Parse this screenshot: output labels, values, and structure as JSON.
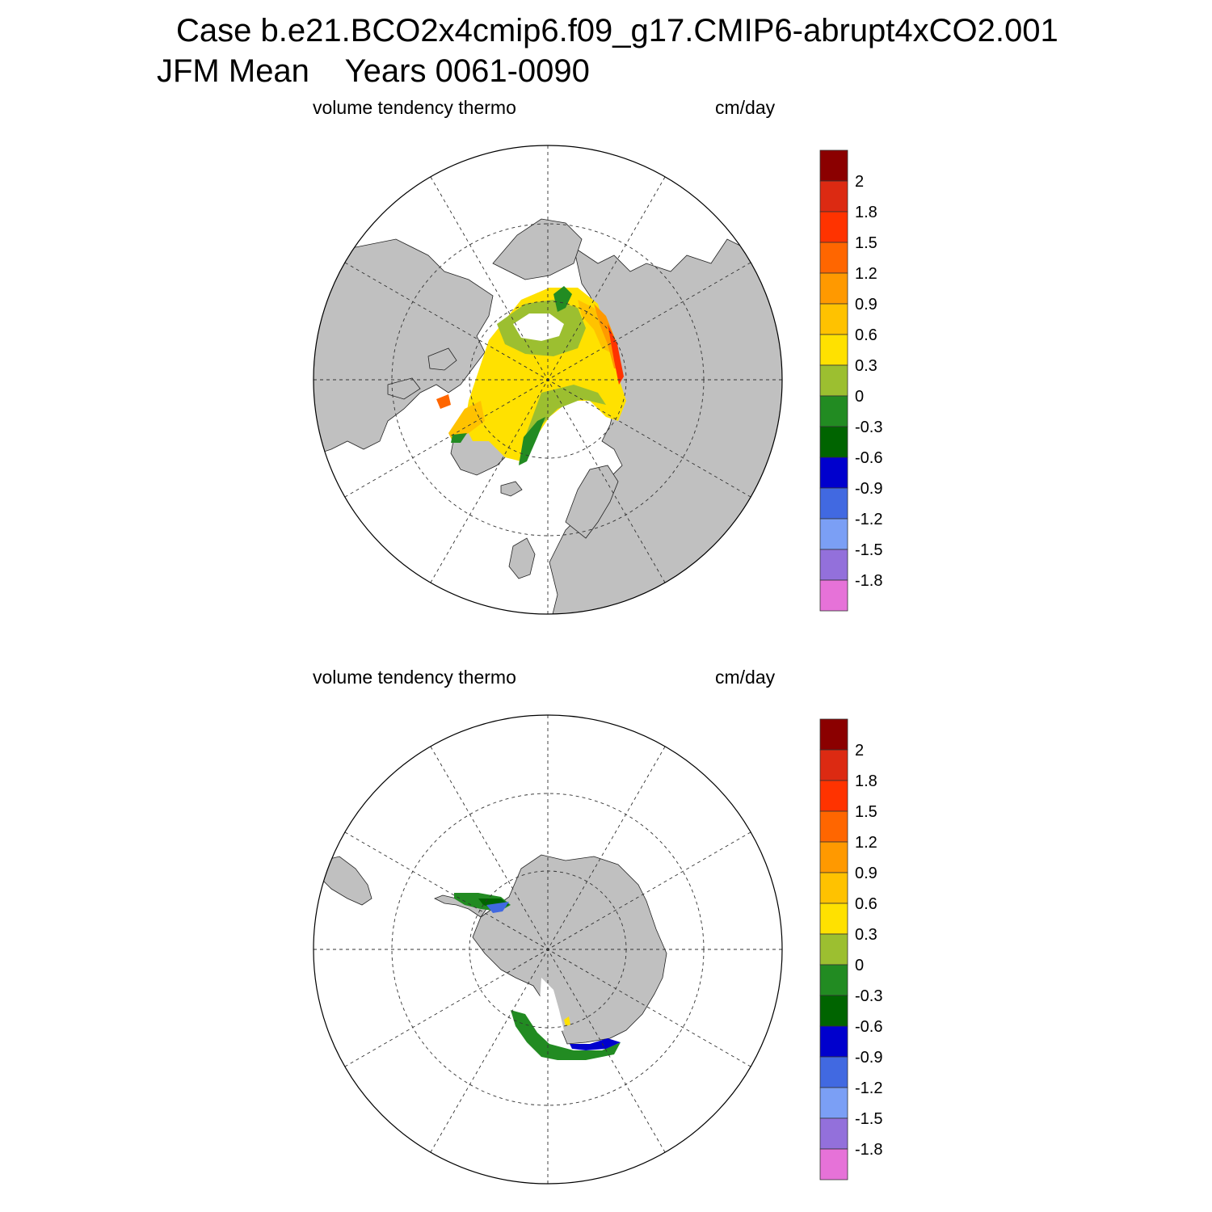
{
  "header": {
    "case_title": "Case b.e21.BCO2x4cmip6.f09_g17.CMIP6-abrupt4xCO2.001",
    "period_title": "JFM Mean    Years 0061-0090"
  },
  "panels": [
    {
      "id": "arctic",
      "variable": "volume tendency thermo",
      "units": "cm/day"
    },
    {
      "id": "antarctic",
      "variable": "volume tendency thermo",
      "units": "cm/day"
    }
  ],
  "colorbar": {
    "labels": [
      "2",
      "1.8",
      "1.5",
      "1.2",
      "0.9",
      "0.6",
      "0.3",
      "0",
      "-0.3",
      "-0.6",
      "-0.9",
      "-1.2",
      "-1.5",
      "-1.8"
    ],
    "colors": [
      "#8b0000",
      "#dc2a12",
      "#ff3300",
      "#ff6600",
      "#ff9900",
      "#ffc200",
      "#ffe100",
      "#9cbf30",
      "#228b22",
      "#006400",
      "#0000cd",
      "#4169e1",
      "#7b9ff5",
      "#9370db",
      "#e672d8"
    ]
  },
  "colors": {
    "land": "#c0c0c0",
    "ocean": "#ffffff"
  }
}
